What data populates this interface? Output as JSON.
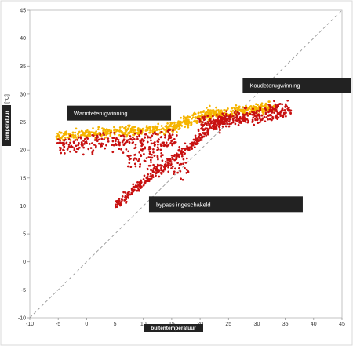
{
  "chart_data": {
    "type": "scatter",
    "xlim": [
      -10,
      45
    ],
    "ylim": [
      -10,
      45
    ],
    "x_ticks": [
      -10,
      -5,
      0,
      5,
      10,
      15,
      20,
      25,
      30,
      35,
      40,
      45
    ],
    "y_ticks": [
      -10,
      -5,
      0,
      5,
      10,
      15,
      20,
      25,
      30,
      35,
      40,
      45
    ],
    "xlabel": "buitentemperatuur",
    "ylabel": "temperatuur",
    "ylabel_suffix": "[°C]",
    "grid": false,
    "reference_line": {
      "from": [
        -10,
        -10
      ],
      "to": [
        45,
        45
      ],
      "style": "dashed",
      "color": "#999999"
    },
    "colors": {
      "series_orange": "#f5b400",
      "series_red": "#c81010",
      "annotation_bg": "#222222"
    },
    "annotations": [
      {
        "text": "Koudeterugwinning",
        "x": 27.5,
        "y": 31.6
      },
      {
        "text": "Warmteterugwinning",
        "x": -3.5,
        "y": 26.6
      },
      {
        "text": "bypass ingeschakeld",
        "x": 11,
        "y": 10.3
      }
    ],
    "series": [
      {
        "color": "#f5b400",
        "segments": [
          {
            "x_start": -5,
            "x_end": 13,
            "y_start": 22.5,
            "y_end": 23.8,
            "spread": 1.2,
            "count": 260
          },
          {
            "x_start": 13,
            "x_end": 22,
            "y_start": 23.5,
            "y_end": 26.5,
            "spread": 1.6,
            "count": 200
          },
          {
            "x_start": 22,
            "x_end": 33,
            "y_start": 26.5,
            "y_end": 27.6,
            "spread": 1.4,
            "count": 200
          }
        ]
      },
      {
        "color": "#c81010",
        "segments": [
          {
            "x_start": -5,
            "x_end": 16,
            "y_start": 21.0,
            "y_end": 22.0,
            "spread": 2.6,
            "count": 260
          },
          {
            "x_start": 7,
            "x_end": 18,
            "y_start": 19.0,
            "y_end": 17.0,
            "spread": 3.2,
            "count": 90
          },
          {
            "x_start": 5,
            "x_end": 24,
            "y_start": 10.2,
            "y_end": 25.5,
            "spread": 1.4,
            "count": 320
          },
          {
            "x_start": 20,
            "x_end": 36,
            "y_start": 24.5,
            "y_end": 27.5,
            "spread": 2.4,
            "count": 320
          }
        ]
      }
    ]
  }
}
